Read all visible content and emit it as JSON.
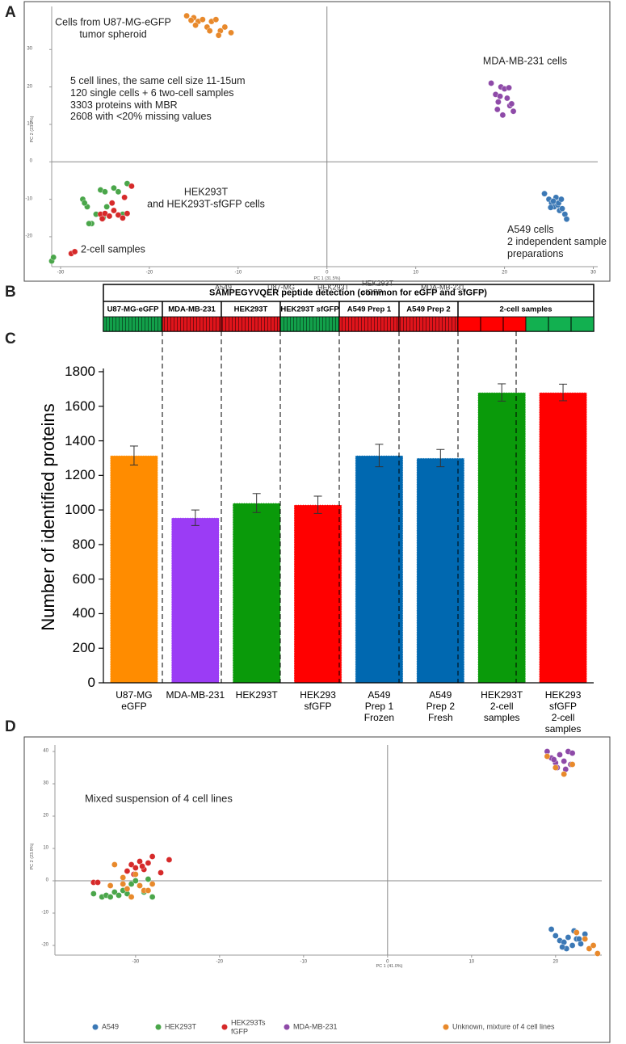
{
  "panel_labels": [
    "A",
    "B",
    "C",
    "D"
  ],
  "chart_data": [
    {
      "type": "scatter",
      "xlabel": "PC 1 (31.5%)",
      "ylabel": "PC 2 (23.2%)",
      "xlim": [
        -31,
        30.5
      ],
      "ylim": [
        -28,
        41.5
      ],
      "xticks": [
        -30,
        -20,
        -10,
        0,
        10,
        20,
        30
      ],
      "yticks": [
        -20,
        -10,
        0,
        10,
        20,
        30
      ],
      "annotations": [
        "Cells from U87-MG-eGFP\ntumor spheroid",
        "5 cell lines, the same cell size 11-15um\n120 single cells + 6 two-cell samples\n3303 proteins with MBR\n2608 with <20% missing values",
        "MDA-MB-231 cells",
        "HEK293T\nand HEK293T-sfGFP cells",
        "A549 cells\n2 independent sample\npreparations",
        "2-cell samples"
      ],
      "series": [
        {
          "name": "A549",
          "color": "#3b78b5",
          "x": [
            24.5,
            25,
            25.3,
            25.6,
            25.8,
            26,
            26.2,
            26.5,
            26.8,
            25.5,
            26.1,
            27,
            25.2,
            26.4
          ],
          "values": [
            -8.5,
            -10,
            -11,
            -12,
            -9.5,
            -11.5,
            -13,
            -12.5,
            -14,
            -10.5,
            -11,
            -15.3,
            -12.2,
            -10
          ]
        },
        {
          "name": "U87-MG",
          "color": "#e8892b",
          "x": [
            -15.8,
            -15,
            -14.5,
            -14,
            -13.5,
            -13,
            -12.5,
            -12,
            -11.5,
            -10.8,
            -14.8,
            -13.2,
            -12.2,
            -15.3
          ],
          "values": [
            39,
            38.5,
            37.5,
            38,
            36,
            37.5,
            38,
            35,
            36,
            34.5,
            36.5,
            35,
            33.8,
            37.8
          ]
        },
        {
          "name": "HEK293T",
          "color": "#4aa64a",
          "x": [
            -31,
            -30.8,
            -27.5,
            -27,
            -26.5,
            -26,
            -25.5,
            -25,
            -24.5,
            -24,
            -23,
            -22.5,
            -26.8,
            -25.2,
            -24.8,
            -27.3,
            -23.5
          ],
          "values": [
            -26.5,
            -25.5,
            -10,
            -12,
            -16.5,
            -14,
            -7.5,
            -8,
            -14.5,
            -7,
            -14,
            -5.8,
            -16.5,
            -15,
            -12,
            -11,
            -8
          ]
        },
        {
          "name": "HEK293T\nsfGFP",
          "color": "#d62a2a",
          "x": [
            -28.8,
            -28.4,
            -25.5,
            -25,
            -24.5,
            -24,
            -23.5,
            -23,
            -22.5,
            -22,
            -24.2,
            -25.3,
            -22.8
          ],
          "values": [
            -24.5,
            -24,
            -14,
            -13.8,
            -14.5,
            -13,
            -14.2,
            -15,
            -13.8,
            -6.5,
            -11,
            -15.2,
            -9.5
          ]
        },
        {
          "name": "MDA-MB-231",
          "color": "#8e4aa8",
          "x": [
            18.5,
            19,
            19.3,
            19.6,
            20,
            20.3,
            20.6,
            21,
            19.8,
            20.5,
            19.2,
            20.8,
            19.5
          ],
          "values": [
            21,
            18,
            16,
            20,
            19.5,
            17,
            15,
            13.5,
            12.5,
            19.8,
            14,
            15.5,
            17.5
          ]
        }
      ]
    },
    {
      "type": "bar",
      "ylabel": "Number of identified proteins",
      "categories": [
        "U87-MG\neGFP",
        "MDA-MB-231",
        "HEK293T",
        "HEK293\nsfGFP",
        "A549\nPrep 1\nFrozen",
        "A549\nPrep 2\nFresh",
        "HEK293T\n2-cell\nsamples",
        "HEK293\nsfGFP\n2-cell\nsamples"
      ],
      "values": [
        1315,
        955,
        1040,
        1030,
        1315,
        1300,
        1680,
        1680
      ],
      "errors": [
        55,
        45,
        55,
        50,
        65,
        50,
        50,
        48
      ],
      "colors": [
        "#ff8c00",
        "#9b3cf5",
        "#0a9a0a",
        "#ff0000",
        "#0068b0",
        "#0068b0",
        "#0a9a0a",
        "#ff0000"
      ],
      "ylim": [
        0,
        1800
      ],
      "yticks": [
        0,
        200,
        400,
        600,
        800,
        1000,
        1200,
        1400,
        1600,
        1800
      ]
    },
    {
      "type": "scatter",
      "xlabel": "PC 1 (41.0%)",
      "ylabel": "PC 2 (23.9%)",
      "xlim": [
        -39.6,
        25.5
      ],
      "ylim": [
        -23,
        42
      ],
      "xticks": [
        -30,
        -20,
        -10,
        0,
        10,
        20
      ],
      "yticks": [
        -20,
        -10,
        0,
        10,
        20,
        30,
        40
      ],
      "annotations": [
        "Mixed suspension of 4 cell lines"
      ],
      "series": [
        {
          "name": "A549",
          "color": "#3b78b5",
          "x": [
            19.5,
            20,
            20.5,
            21,
            21.5,
            22,
            22.5,
            23,
            23.5,
            21.3,
            22.2,
            20.8,
            22.8
          ],
          "values": [
            -15,
            -17,
            -18.5,
            -19,
            -17.5,
            -20,
            -18,
            -19.5,
            -16.5,
            -21,
            -15.5,
            -20.5,
            -18
          ]
        },
        {
          "name": "HEK293T",
          "color": "#4aa64a",
          "x": [
            -35,
            -34,
            -33.5,
            -33,
            -32.5,
            -32,
            -31,
            -30.5,
            -30,
            -29,
            -28.5,
            -28,
            -29.5,
            -31.5
          ],
          "values": [
            -4,
            -5,
            -4.5,
            -5,
            -3.5,
            -4.5,
            -4,
            -1,
            0,
            -3.5,
            0.5,
            -5,
            -1.5,
            -3
          ]
        },
        {
          "name": "HEK293Ts\nfGFP",
          "color": "#d62a2a",
          "x": [
            -35,
            -34.5,
            -31,
            -30.5,
            -30,
            -29.5,
            -29,
            -28.5,
            -28,
            -27,
            -26,
            -30.2,
            -29.2
          ],
          "values": [
            -0.5,
            -0.5,
            3,
            5,
            4,
            6,
            3.5,
            5.5,
            7.5,
            2.5,
            6.5,
            2,
            4.5
          ]
        },
        {
          "name": "MDA-MB-231",
          "color": "#8e4aa8",
          "x": [
            19,
            19.5,
            20,
            20.5,
            21,
            21.5,
            22,
            20.2,
            21.2,
            19.8,
            21.8
          ],
          "values": [
            40,
            38,
            36.5,
            39,
            37,
            40,
            39.5,
            35,
            34.5,
            37.5,
            36
          ]
        },
        {
          "name": "Unknown, mixture of 4 cell lines",
          "color": "#e8892b",
          "x": [
            -32.5,
            -31.5,
            -31,
            -30.5,
            -29.5,
            -29,
            -28.5,
            -30,
            19,
            20,
            21,
            22,
            22.5,
            23.5,
            24,
            24.5,
            25,
            -33,
            -31.5,
            -28
          ],
          "values": [
            5,
            -1,
            -2.5,
            -5,
            -1.5,
            -3,
            -3,
            2,
            38.5,
            35,
            33,
            36,
            -16,
            -18,
            -21,
            -20,
            -22.5,
            -1.5,
            1,
            -1
          ]
        }
      ]
    }
  ],
  "detection_table": {
    "title": "SAMPEGYVQER peptide detection (common for eGFP and sfGFP)",
    "columns": [
      {
        "label": "U87-MG-eGFP",
        "colors": [
          "#12a04a"
        ]
      },
      {
        "label": "MDA-MB-231",
        "colors": [
          "#e0141b"
        ]
      },
      {
        "label": "HEK293T",
        "colors": [
          "#e0141b"
        ]
      },
      {
        "label": "HEK293T sfGFP",
        "colors": [
          "#12a04a"
        ]
      },
      {
        "label": "A549 Prep 1",
        "colors": [
          "#e0141b"
        ]
      },
      {
        "label": "A549 Prep 2",
        "colors": [
          "#e0141b"
        ]
      },
      {
        "label": "2-cell samples",
        "colors": [
          "#ff0000",
          "#12b050"
        ]
      }
    ]
  }
}
